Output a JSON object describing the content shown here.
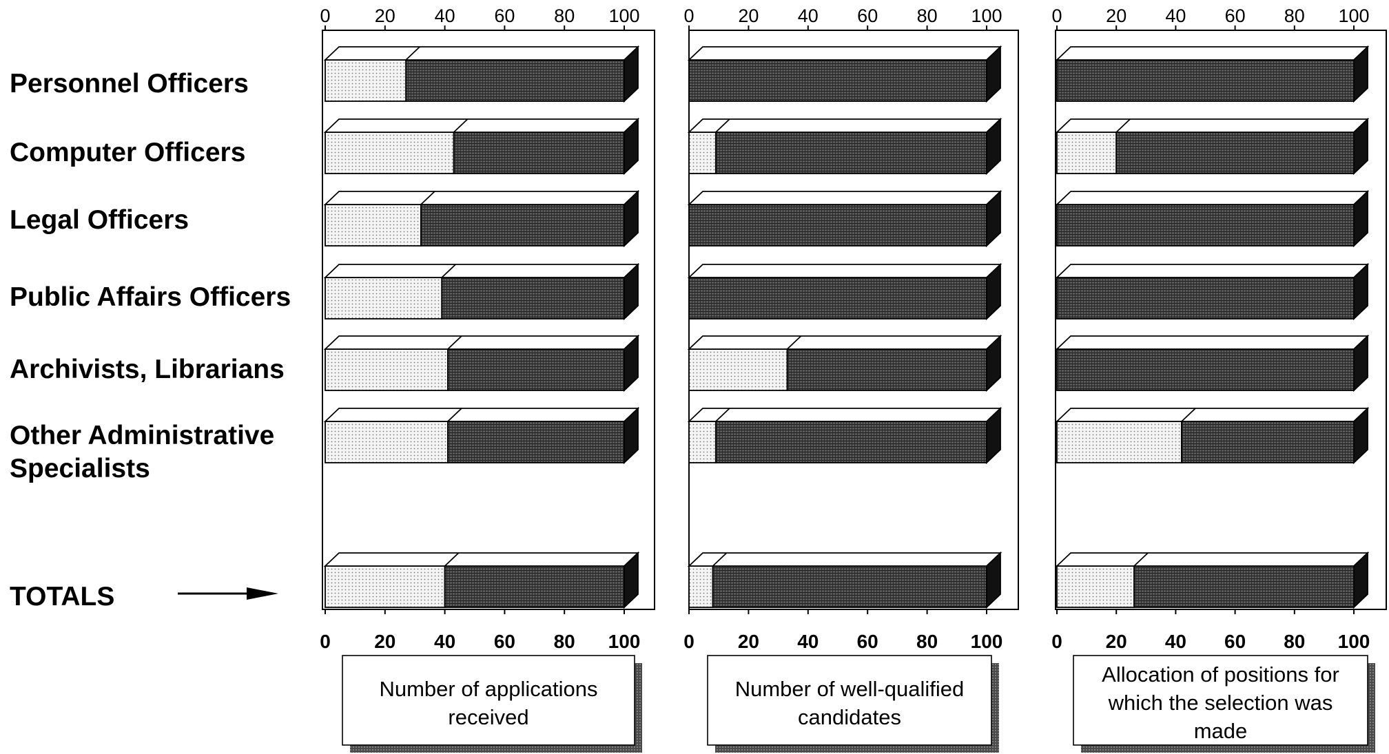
{
  "chart_data": {
    "type": "bar",
    "stacked": true,
    "orientation": "horizontal",
    "categories": [
      "Personnel Officers",
      "Computer Officers",
      "Legal Officers",
      "Public Affairs Officers",
      "Archivists, Librarians",
      "Other Administrative Specialists",
      "TOTALS"
    ],
    "category_lines": [
      [
        "Personnel Officers"
      ],
      [
        "Computer Officers"
      ],
      [
        "Legal Officers"
      ],
      [
        "Public Affairs Officers"
      ],
      [
        "Archivists, Librarians"
      ],
      [
        "Other Administrative",
        "Specialists"
      ],
      [
        "TOTALS"
      ]
    ],
    "xlim": [
      0,
      100
    ],
    "xticks": [
      0,
      20,
      40,
      60,
      80,
      100
    ],
    "tick_labels": [
      "0",
      "20",
      "40",
      "60",
      "80",
      "100"
    ],
    "colors": {
      "light_segment": "#e6e6e6",
      "dark_segment": "#4d4d4d",
      "outline": "#000000"
    },
    "panels": [
      {
        "caption_lines": [
          "Number of applications",
          "received"
        ],
        "light_values": [
          27,
          43,
          32,
          39,
          41,
          41,
          40
        ],
        "dark_values": [
          73,
          57,
          68,
          61,
          59,
          59,
          60
        ]
      },
      {
        "caption_lines": [
          "Number of well-qualified",
          "candidates"
        ],
        "light_values": [
          0,
          9,
          0,
          0,
          33,
          9,
          8
        ],
        "dark_values": [
          100,
          91,
          100,
          100,
          67,
          91,
          92
        ]
      },
      {
        "caption_lines": [
          "Allocation of positions for",
          "which the selection was",
          "made"
        ],
        "light_values": [
          0,
          20,
          0,
          0,
          0,
          42,
          26
        ],
        "dark_values": [
          100,
          80,
          100,
          100,
          100,
          58,
          74
        ]
      }
    ]
  }
}
